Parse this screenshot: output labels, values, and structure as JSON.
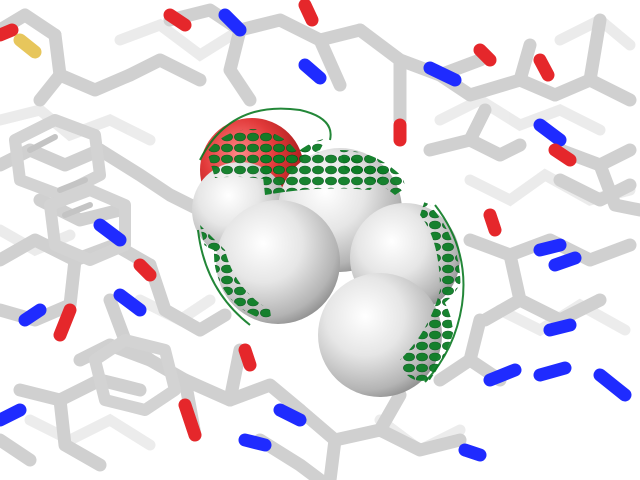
{
  "scene": {
    "kind": "molecular-render",
    "background_color": "#ffffff",
    "colors": {
      "carbon": "#d2d2d2",
      "carbon_faint": "#ebebeb",
      "nitrogen": "#1a1aff",
      "oxygen": "#e8272a",
      "sulfur": "#e6c85a",
      "ligand_sphere": "#dcdcdc",
      "contact_dots": "#0b7a22"
    },
    "ligand": {
      "representation": "spheres",
      "atom_count": 5,
      "has_oxygen_atom": true,
      "contact_surface": "dots"
    },
    "protein": {
      "representation": "sticks",
      "aromatic_rings_visible": true
    }
  }
}
